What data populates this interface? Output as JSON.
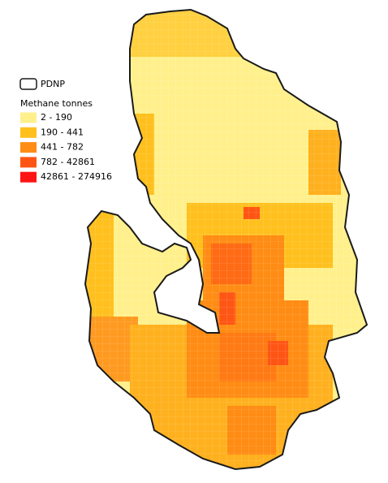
{
  "legend": {
    "boundary": "PDNP",
    "title": "Methane tonnes",
    "classes": [
      {
        "label": "2 - 190",
        "color": "#fff08c"
      },
      {
        "label": "190 - 441",
        "color": "#ffc01e"
      },
      {
        "label": "441 - 782",
        "color": "#ff8c14"
      },
      {
        "label": "782 - 42861",
        "color": "#ff5514"
      },
      {
        "label": "42861 - 274916",
        "color": "#ff1414"
      }
    ]
  }
}
